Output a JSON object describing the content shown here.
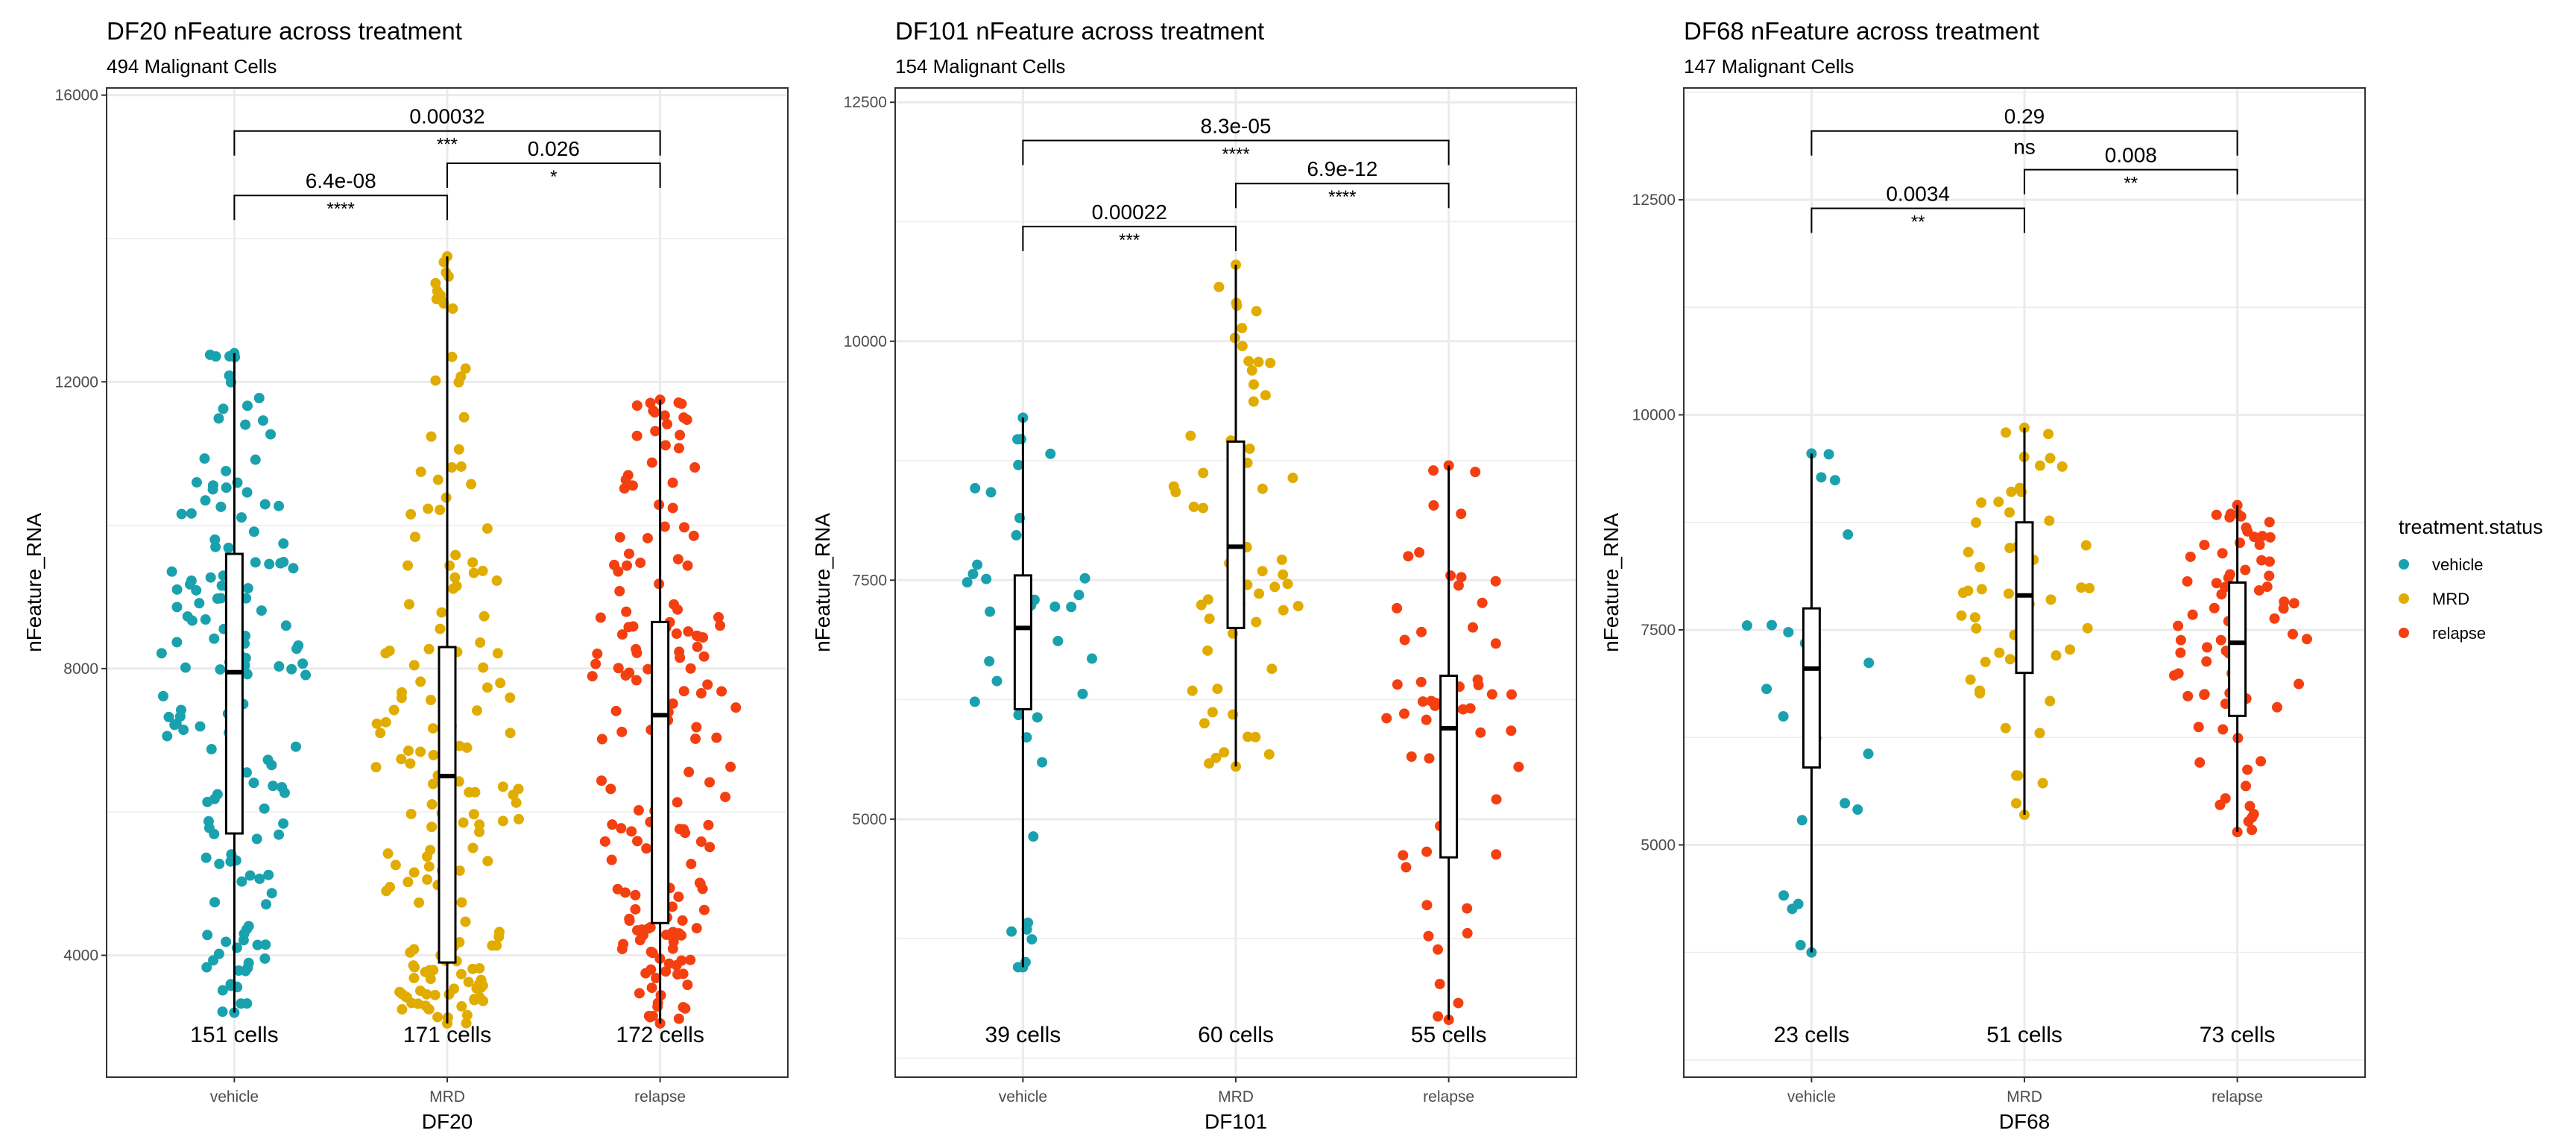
{
  "chart_data": [
    {
      "type": "box",
      "title": "DF20 nFeature across treatment",
      "subtitle": "494 Malignant Cells",
      "xlabel": "DF20",
      "ylabel": "nFeature_RNA",
      "categories": [
        "vehicle",
        "MRD",
        "relapse"
      ],
      "yticks": [
        4000,
        8000,
        12000,
        16000
      ],
      "ylim": [
        2300,
        16100
      ],
      "cell_counts": [
        "151 cells",
        "171 cells",
        "172 cells"
      ],
      "boxes": [
        {
          "group": "vehicle",
          "min": 3200,
          "q1": 5700,
          "median": 7950,
          "q3": 9600,
          "max": 12400
        },
        {
          "group": "MRD",
          "min": 3050,
          "q1": 3900,
          "median": 6500,
          "q3": 8300,
          "max": 13750
        },
        {
          "group": "relapse",
          "min": 3050,
          "q1": 4450,
          "median": 7350,
          "q3": 8650,
          "max": 11750
        }
      ],
      "points_n": [
        151,
        171,
        172
      ],
      "comparisons": [
        {
          "from": "vehicle",
          "to": "MRD",
          "p": "6.4e-08",
          "signif": "****",
          "y": 14600
        },
        {
          "from": "MRD",
          "to": "relapse",
          "p": "0.026",
          "signif": "*",
          "y": 15050
        },
        {
          "from": "vehicle",
          "to": "relapse",
          "p": "0.00032",
          "signif": "***",
          "y": 15500
        }
      ]
    },
    {
      "type": "box",
      "title": "DF101 nFeature across treatment",
      "subtitle": "154 Malignant Cells",
      "xlabel": "DF101",
      "ylabel": "nFeature_RNA",
      "categories": [
        "vehicle",
        "MRD",
        "relapse"
      ],
      "yticks": [
        5000,
        7500,
        10000,
        12500
      ],
      "ylim": [
        2300,
        12650
      ],
      "cell_counts": [
        "39 cells",
        "60 cells",
        "55 cells"
      ],
      "boxes": [
        {
          "group": "vehicle",
          "min": 3450,
          "q1": 6150,
          "median": 7000,
          "q3": 7550,
          "max": 9200
        },
        {
          "group": "MRD",
          "min": 5550,
          "q1": 7000,
          "median": 7850,
          "q3": 8950,
          "max": 10800
        },
        {
          "group": "relapse",
          "min": 2900,
          "q1": 4600,
          "median": 5950,
          "q3": 6500,
          "max": 8700
        }
      ],
      "points_n": [
        39,
        60,
        55
      ],
      "comparisons": [
        {
          "from": "vehicle",
          "to": "MRD",
          "p": "0.00022",
          "signif": "***",
          "y": 11200
        },
        {
          "from": "MRD",
          "to": "relapse",
          "p": "6.9e-12",
          "signif": "****",
          "y": 11650
        },
        {
          "from": "vehicle",
          "to": "relapse",
          "p": "8.3e-05",
          "signif": "****",
          "y": 12100
        }
      ]
    },
    {
      "type": "box",
      "title": "DF68 nFeature across treatment",
      "subtitle": "147 Malignant Cells",
      "xlabel": "DF68",
      "ylabel": "nFeature_RNA",
      "categories": [
        "vehicle",
        "MRD",
        "relapse"
      ],
      "yticks": [
        5000,
        7500,
        10000,
        12500
      ],
      "ylim": [
        2300,
        13800
      ],
      "cell_counts": [
        "23 cells",
        "51 cells",
        "73 cells"
      ],
      "boxes": [
        {
          "group": "vehicle",
          "min": 3750,
          "q1": 5900,
          "median": 7050,
          "q3": 7750,
          "max": 9550
        },
        {
          "group": "MRD",
          "min": 5350,
          "q1": 7000,
          "median": 7900,
          "q3": 8750,
          "max": 9850
        },
        {
          "group": "relapse",
          "min": 5150,
          "q1": 6500,
          "median": 7350,
          "q3": 8050,
          "max": 8950
        }
      ],
      "points_n": [
        23,
        51,
        73
      ],
      "comparisons": [
        {
          "from": "vehicle",
          "to": "MRD",
          "p": "0.0034",
          "signif": "**",
          "y": 12400
        },
        {
          "from": "MRD",
          "to": "relapse",
          "p": "0.008",
          "signif": "**",
          "y": 12850
        },
        {
          "from": "vehicle",
          "to": "relapse",
          "p": "0.29",
          "signif": "ns",
          "y": 13300
        }
      ]
    }
  ],
  "legend": {
    "title": "treatment.status",
    "position": "right",
    "items": [
      {
        "label": "vehicle",
        "color": "#1AA1AE"
      },
      {
        "label": "MRD",
        "color": "#E1AC00"
      },
      {
        "label": "relapse",
        "color": "#F43F10"
      }
    ]
  }
}
